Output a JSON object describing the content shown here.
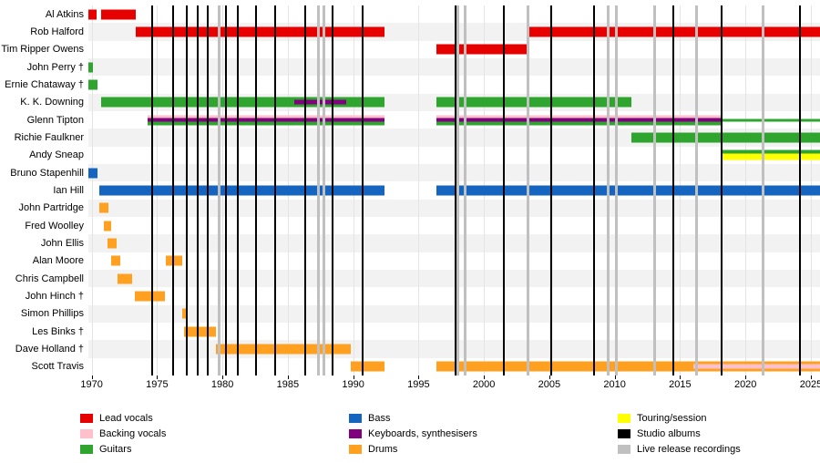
{
  "chart_data": {
    "type": "timeline",
    "axis": {
      "start": 1969.75,
      "end": 2025.7,
      "ticks": [
        1970,
        1975,
        1980,
        1985,
        1990,
        1995,
        2000,
        2005,
        2010,
        2015,
        2020,
        2025
      ]
    },
    "colors": {
      "lead_vocals": "#e60000",
      "backing_vocals": "#ffc0cb",
      "guitars": "#2fa52f",
      "bass": "#1565c0",
      "keyboards": "#800080",
      "drums": "#ffa020",
      "touring": "#ffff00",
      "studio_albums": "#000000",
      "live_releases": "#c0c0c0"
    },
    "members": [
      {
        "name": "Al Atkins",
        "segments": [
          {
            "from": 1969.75,
            "till": 1970.35,
            "roles": [
              "lead_vocals"
            ]
          },
          {
            "from": 1970.7,
            "till": 1973.4,
            "roles": [
              "lead_vocals"
            ]
          }
        ]
      },
      {
        "name": "Rob Halford",
        "segments": [
          {
            "from": 1973.4,
            "till": 1992.4,
            "roles": [
              "lead_vocals"
            ]
          },
          {
            "from": 2003.4,
            "till": 2025.7,
            "roles": [
              "lead_vocals"
            ]
          }
        ]
      },
      {
        "name": "Tim Ripper Owens",
        "segments": [
          {
            "from": 1996.4,
            "till": 2003.4,
            "roles": [
              "lead_vocals"
            ]
          }
        ]
      },
      {
        "name": "John Perry †",
        "segments": [
          {
            "from": 1969.75,
            "till": 1970.1,
            "roles": [
              "guitars"
            ]
          }
        ]
      },
      {
        "name": "Ernie Chataway †",
        "segments": [
          {
            "from": 1969.75,
            "till": 1970.45,
            "roles": [
              "guitars"
            ]
          }
        ]
      },
      {
        "name": "K. K. Downing",
        "segments": [
          {
            "from": 1970.7,
            "till": 1992.4,
            "roles": [
              "guitars"
            ]
          },
          {
            "from": 1985.5,
            "till": 1989.5,
            "roles": [
              "keyboards"
            ],
            "style": "overlay"
          },
          {
            "from": 1996.4,
            "till": 2011.3,
            "roles": [
              "guitars"
            ]
          }
        ]
      },
      {
        "name": "Glenn Tipton",
        "segments": [
          {
            "from": 1974.3,
            "till": 1992.4,
            "roles": [
              "backing_vocals",
              "keyboards",
              "guitars"
            ]
          },
          {
            "from": 1996.4,
            "till": 2018.2,
            "roles": [
              "backing_vocals",
              "keyboards",
              "guitars"
            ]
          },
          {
            "from": 2018.2,
            "till": 2025.7,
            "roles": [
              "guitars"
            ],
            "style": "thin"
          }
        ]
      },
      {
        "name": "Richie Faulkner",
        "segments": [
          {
            "from": 2011.3,
            "till": 2025.7,
            "roles": [
              "guitars"
            ]
          }
        ]
      },
      {
        "name": "Andy Sneap",
        "segments": [
          {
            "from": 2018.2,
            "till": 2025.7,
            "roles": [
              "guitars",
              "touring",
              "touring"
            ]
          }
        ]
      },
      {
        "name": "Bruno Stapenhill",
        "segments": [
          {
            "from": 1969.75,
            "till": 1970.45,
            "roles": [
              "bass"
            ]
          }
        ]
      },
      {
        "name": "Ian Hill",
        "segments": [
          {
            "from": 1970.6,
            "till": 1992.4,
            "roles": [
              "bass"
            ]
          },
          {
            "from": 1996.4,
            "till": 2025.7,
            "roles": [
              "bass"
            ]
          }
        ]
      },
      {
        "name": "John Partridge",
        "segments": [
          {
            "from": 1970.6,
            "till": 1971.3,
            "roles": [
              "drums"
            ]
          }
        ]
      },
      {
        "name": "Fred Woolley",
        "segments": [
          {
            "from": 1970.9,
            "till": 1971.5,
            "roles": [
              "drums"
            ]
          }
        ]
      },
      {
        "name": "John Ellis",
        "segments": [
          {
            "from": 1971.2,
            "till": 1971.9,
            "roles": [
              "drums"
            ]
          }
        ]
      },
      {
        "name": "Alan Moore",
        "segments": [
          {
            "from": 1971.5,
            "till": 1972.2,
            "roles": [
              "drums"
            ]
          },
          {
            "from": 1975.7,
            "till": 1976.9,
            "roles": [
              "drums"
            ]
          }
        ]
      },
      {
        "name": "Chris Campbell",
        "segments": [
          {
            "from": 1972.0,
            "till": 1973.1,
            "roles": [
              "drums"
            ]
          }
        ]
      },
      {
        "name": "John Hinch †",
        "segments": [
          {
            "from": 1973.3,
            "till": 1975.6,
            "roles": [
              "drums"
            ]
          }
        ]
      },
      {
        "name": "Simon Phillips",
        "segments": [
          {
            "from": 1976.9,
            "till": 1977.2,
            "roles": [
              "drums"
            ]
          }
        ]
      },
      {
        "name": "Les Binks †",
        "segments": [
          {
            "from": 1977.1,
            "till": 1979.5,
            "roles": [
              "drums"
            ]
          }
        ]
      },
      {
        "name": "Dave Holland †",
        "segments": [
          {
            "from": 1979.5,
            "till": 1989.8,
            "roles": [
              "drums"
            ]
          }
        ]
      },
      {
        "name": "Scott Travis",
        "segments": [
          {
            "from": 1989.8,
            "till": 1992.4,
            "roles": [
              "drums"
            ]
          },
          {
            "from": 1996.4,
            "till": 2025.7,
            "roles": [
              "drums"
            ]
          },
          {
            "from": 2016.0,
            "till": 2025.7,
            "roles": [
              "backing_vocals"
            ],
            "style": "overlay"
          }
        ]
      }
    ],
    "studio_albums": [
      1974.6,
      1976.2,
      1977.3,
      1978.1,
      1978.85,
      1980.3,
      1981.15,
      1982.55,
      1984.05,
      1986.3,
      1988.4,
      1990.7,
      1997.8,
      2001.55,
      2005.15,
      2008.45,
      2014.5,
      2018.2,
      2024.2
    ],
    "live_releases": [
      1979.7,
      1987.3,
      1987.7,
      1998.0,
      1998.55,
      2003.3,
      2009.5,
      2010.1,
      2013.0,
      2016.2,
      2021.3
    ]
  },
  "legend": {
    "columns": [
      {
        "items": [
          {
            "label": "Lead vocals",
            "role": "lead_vocals"
          },
          {
            "label": "Backing vocals",
            "role": "backing_vocals"
          },
          {
            "label": "Guitars",
            "role": "guitars"
          }
        ]
      },
      {
        "items": [
          {
            "label": "Bass",
            "role": "bass"
          },
          {
            "label": "Keyboards, synthesisers",
            "role": "keyboards"
          },
          {
            "label": "Drums",
            "role": "drums"
          }
        ]
      },
      {
        "items": [
          {
            "label": "Touring/session",
            "role": "touring"
          },
          {
            "label": "Studio albums",
            "role": "studio_albums"
          },
          {
            "label": "Live release recordings",
            "role": "live_releases"
          }
        ]
      }
    ]
  }
}
